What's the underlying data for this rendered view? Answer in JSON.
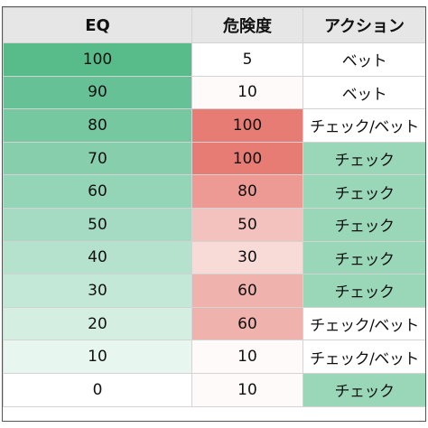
{
  "headers": {
    "eq": "EQ",
    "risk": "危険度",
    "action": "アクション"
  },
  "rows": [
    {
      "eq": "100",
      "risk": "5",
      "action": "ベット",
      "eq_color": "#57bb8a",
      "risk_color": "#ffffff",
      "action_color": "#ffffff"
    },
    {
      "eq": "90",
      "risk": "10",
      "action": "ベット",
      "eq_color": "#66c196",
      "risk_color": "#fffafa",
      "action_color": "#ffffff"
    },
    {
      "eq": "80",
      "risk": "100",
      "action": "チェック/ベット",
      "eq_color": "#76c8a1",
      "risk_color": "#e67c73",
      "action_color": "#ffffff"
    },
    {
      "eq": "70",
      "risk": "100",
      "action": "チェック",
      "eq_color": "#86ceac",
      "risk_color": "#e67c73",
      "action_color": "#9ad7b8"
    },
    {
      "eq": "60",
      "risk": "80",
      "action": "チェック",
      "eq_color": "#95d5b7",
      "risk_color": "#ec9a93",
      "action_color": "#9ad7b8"
    },
    {
      "eq": "50",
      "risk": "50",
      "action": "チェック",
      "eq_color": "#a5dbc2",
      "risk_color": "#f4c2be",
      "action_color": "#9ad7b8"
    },
    {
      "eq": "40",
      "risk": "30",
      "action": "チェック",
      "eq_color": "#b4e2cc",
      "risk_color": "#f8dad7",
      "action_color": "#9ad7b8"
    },
    {
      "eq": "30",
      "risk": "60",
      "action": "チェック",
      "eq_color": "#c4e8d7",
      "risk_color": "#f0b2ad",
      "action_color": "#9ad7b8"
    },
    {
      "eq": "20",
      "risk": "60",
      "action": "チェック/ベット",
      "eq_color": "#d4efe2",
      "risk_color": "#f0b2ad",
      "action_color": "#ffffff"
    },
    {
      "eq": "10",
      "risk": "10",
      "action": "チェック/ベット",
      "eq_color": "#e8f6f0",
      "risk_color": "#fffafa",
      "action_color": "#ffffff"
    },
    {
      "eq": "0",
      "risk": "10",
      "action": "チェック",
      "eq_color": "#ffffff",
      "risk_color": "#fffafa",
      "action_color": "#9ad7b8"
    }
  ]
}
